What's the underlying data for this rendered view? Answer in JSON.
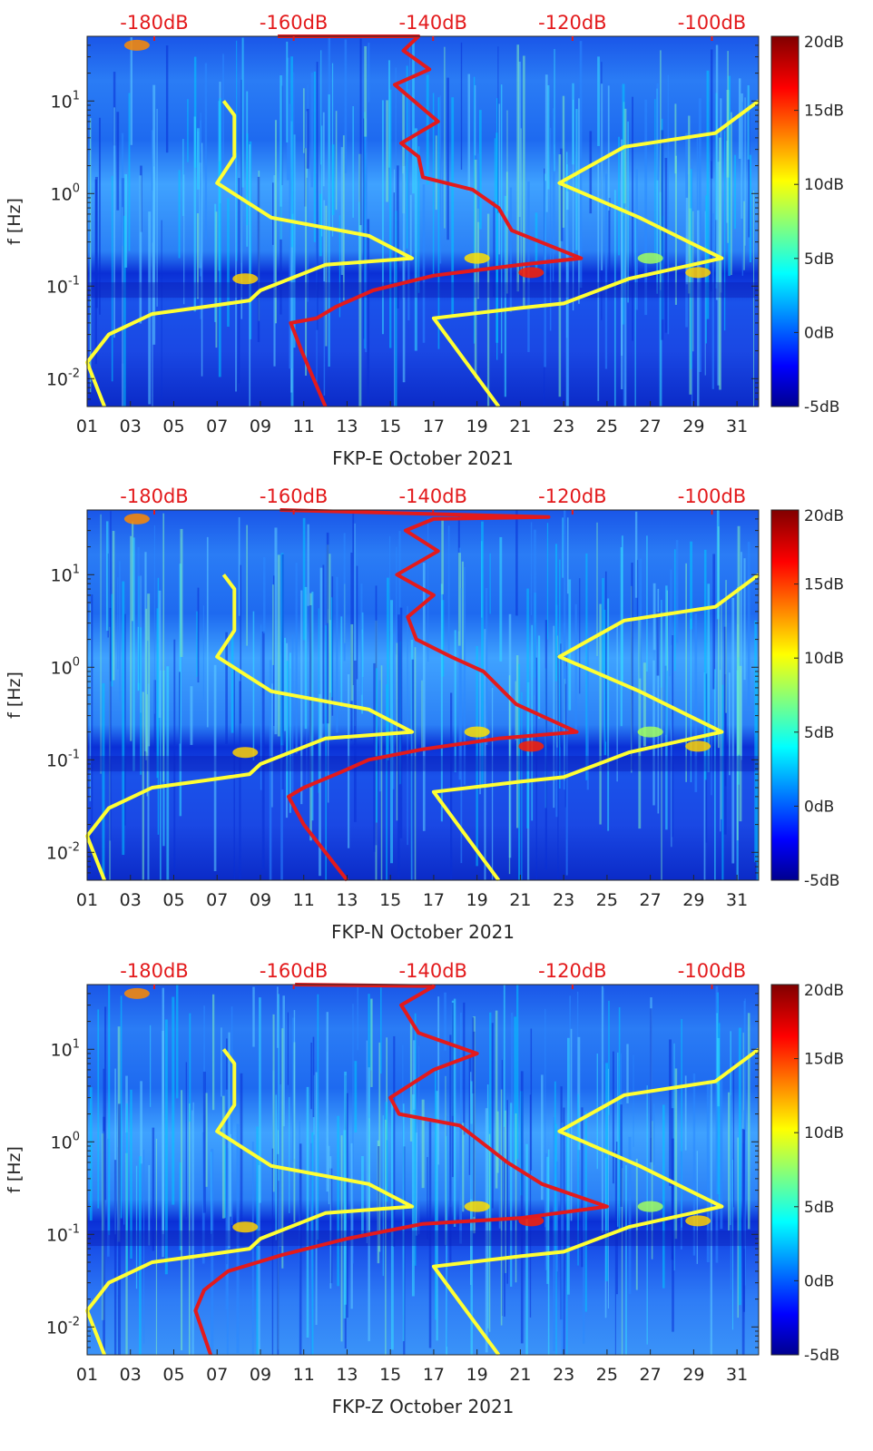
{
  "chart_data": [
    {
      "type": "heatmap",
      "title": "FKP-E October 2021",
      "xlabel": "FKP-E October 2021",
      "ylabel": "f [Hz]",
      "x_ticks": [
        "01",
        "03",
        "05",
        "07",
        "09",
        "11",
        "13",
        "15",
        "17",
        "19",
        "21",
        "23",
        "25",
        "27",
        "29",
        "31"
      ],
      "xlim_day": [
        1,
        32
      ],
      "y_ticks": [
        "10^-2",
        "10^-1",
        "10^0",
        "10^1"
      ],
      "ylim_hz": [
        0.005,
        50
      ],
      "top_axis_ticks": [
        "-180dB",
        "-160dB",
        "-140dB",
        "-120dB",
        "-100dB"
      ],
      "top_axis_range_db": [
        -190,
        -93.8
      ],
      "colorbar_ticks": [
        "20dB",
        "15dB",
        "10dB",
        "5dB",
        "0dB",
        "-5dB"
      ],
      "colorbar_range_db": [
        -5,
        20
      ],
      "series": [
        {
          "name": "yellow noise-model curves",
          "color": "#ffff33",
          "low_model_points_day_vs_hz": [
            [
              7.3,
              10
            ],
            [
              7.8,
              7
            ],
            [
              7.8,
              2.5
            ],
            [
              7.0,
              1.3
            ],
            [
              9.5,
              0.55
            ],
            [
              14.0,
              0.35
            ],
            [
              16.0,
              0.2
            ],
            [
              12.0,
              0.17
            ],
            [
              9.0,
              0.09
            ],
            [
              8.5,
              0.07
            ],
            [
              6.5,
              0.06
            ],
            [
              4.0,
              0.05
            ],
            [
              2.0,
              0.03
            ],
            [
              1.0,
              0.015
            ],
            [
              1.8,
              0.005
            ]
          ],
          "high_model_points_day_vs_hz": [
            [
              32.0,
              10
            ],
            [
              30.0,
              4.5
            ],
            [
              25.8,
              3.2
            ],
            [
              22.8,
              1.3
            ],
            [
              26.5,
              0.55
            ],
            [
              30.3,
              0.2
            ],
            [
              26.0,
              0.12
            ],
            [
              23.0,
              0.065
            ],
            [
              21.0,
              0.058
            ],
            [
              17.0,
              0.045
            ],
            [
              20.0,
              0.005
            ]
          ]
        },
        {
          "name": "red median PSD curve",
          "color": "#e31a1c",
          "points_day_vs_hz": [
            [
              9.8,
              50
            ],
            [
              16.3,
              50
            ],
            [
              15.6,
              35
            ],
            [
              16.8,
              22
            ],
            [
              15.2,
              15
            ],
            [
              17.2,
              6
            ],
            [
              15.5,
              3.5
            ],
            [
              16.3,
              2.5
            ],
            [
              16.5,
              1.5
            ],
            [
              18.8,
              1.1
            ],
            [
              20.0,
              0.7
            ],
            [
              20.6,
              0.4
            ],
            [
              23.8,
              0.2
            ],
            [
              21.0,
              0.17
            ],
            [
              17.0,
              0.13
            ],
            [
              14.2,
              0.09
            ],
            [
              12.5,
              0.06
            ],
            [
              11.6,
              0.045
            ],
            [
              10.4,
              0.04
            ],
            [
              10.9,
              0.02
            ],
            [
              12.0,
              0.005
            ]
          ]
        }
      ]
    },
    {
      "type": "heatmap",
      "title": "FKP-N October 2021",
      "xlabel": "FKP-N October 2021",
      "ylabel": "f [Hz]",
      "x_ticks": [
        "01",
        "03",
        "05",
        "07",
        "09",
        "11",
        "13",
        "15",
        "17",
        "19",
        "21",
        "23",
        "25",
        "27",
        "29",
        "31"
      ],
      "xlim_day": [
        1,
        32
      ],
      "y_ticks": [
        "10^-2",
        "10^-1",
        "10^0",
        "10^1"
      ],
      "ylim_hz": [
        0.005,
        50
      ],
      "top_axis_ticks": [
        "-180dB",
        "-160dB",
        "-140dB",
        "-120dB",
        "-100dB"
      ],
      "top_axis_range_db": [
        -190,
        -93.8
      ],
      "colorbar_ticks": [
        "20dB",
        "15dB",
        "10dB",
        "5dB",
        "0dB",
        "-5dB"
      ],
      "colorbar_range_db": [
        -5,
        20
      ],
      "series": [
        {
          "name": "yellow noise-model curves",
          "color": "#ffff33",
          "low_model_points_day_vs_hz": [
            [
              7.3,
              10
            ],
            [
              7.8,
              7
            ],
            [
              7.8,
              2.5
            ],
            [
              7.0,
              1.3
            ],
            [
              9.5,
              0.55
            ],
            [
              14.0,
              0.35
            ],
            [
              16.0,
              0.2
            ],
            [
              12.0,
              0.17
            ],
            [
              9.0,
              0.09
            ],
            [
              8.5,
              0.07
            ],
            [
              6.5,
              0.06
            ],
            [
              4.0,
              0.05
            ],
            [
              2.0,
              0.03
            ],
            [
              1.0,
              0.015
            ],
            [
              1.8,
              0.005
            ]
          ],
          "high_model_points_day_vs_hz": [
            [
              32.0,
              10
            ],
            [
              30.0,
              4.5
            ],
            [
              25.8,
              3.2
            ],
            [
              22.8,
              1.3
            ],
            [
              26.5,
              0.55
            ],
            [
              30.3,
              0.2
            ],
            [
              26.0,
              0.12
            ],
            [
              23.0,
              0.065
            ],
            [
              21.0,
              0.058
            ],
            [
              17.0,
              0.045
            ],
            [
              20.0,
              0.005
            ]
          ]
        },
        {
          "name": "red median PSD curve",
          "color": "#e31a1c",
          "points_day_vs_hz": [
            [
              9.9,
              50
            ],
            [
              22.3,
              42
            ],
            [
              17.0,
              40
            ],
            [
              15.7,
              30
            ],
            [
              17.2,
              18
            ],
            [
              15.3,
              10
            ],
            [
              17.0,
              6
            ],
            [
              15.8,
              3.5
            ],
            [
              16.2,
              2.0
            ],
            [
              17.8,
              1.3
            ],
            [
              19.3,
              0.9
            ],
            [
              20.8,
              0.4
            ],
            [
              23.6,
              0.2
            ],
            [
              20.0,
              0.17
            ],
            [
              16.5,
              0.13
            ],
            [
              14.0,
              0.1
            ],
            [
              12.5,
              0.07
            ],
            [
              11.0,
              0.05
            ],
            [
              10.3,
              0.04
            ],
            [
              11.0,
              0.02
            ],
            [
              13.0,
              0.005
            ]
          ]
        }
      ]
    },
    {
      "type": "heatmap",
      "title": "FKP-Z October 2021",
      "xlabel": "FKP-Z October 2021",
      "ylabel": "f [Hz]",
      "x_ticks": [
        "01",
        "03",
        "05",
        "07",
        "09",
        "11",
        "13",
        "15",
        "17",
        "19",
        "21",
        "23",
        "25",
        "27",
        "29",
        "31"
      ],
      "xlim_day": [
        1,
        32
      ],
      "y_ticks": [
        "10^-2",
        "10^-1",
        "10^0",
        "10^1"
      ],
      "ylim_hz": [
        0.005,
        50
      ],
      "top_axis_ticks": [
        "-180dB",
        "-160dB",
        "-140dB",
        "-120dB",
        "-100dB"
      ],
      "top_axis_range_db": [
        -190,
        -93.8
      ],
      "colorbar_ticks": [
        "20dB",
        "15dB",
        "10dB",
        "5dB",
        "0dB",
        "-5dB"
      ],
      "colorbar_range_db": [
        -5,
        20
      ],
      "series": [
        {
          "name": "yellow noise-model curves",
          "color": "#ffff33",
          "low_model_points_day_vs_hz": [
            [
              7.3,
              10
            ],
            [
              7.8,
              7
            ],
            [
              7.8,
              2.5
            ],
            [
              7.0,
              1.3
            ],
            [
              9.5,
              0.55
            ],
            [
              14.0,
              0.35
            ],
            [
              16.0,
              0.2
            ],
            [
              12.0,
              0.17
            ],
            [
              9.0,
              0.09
            ],
            [
              8.5,
              0.07
            ],
            [
              6.5,
              0.06
            ],
            [
              4.0,
              0.05
            ],
            [
              2.0,
              0.03
            ],
            [
              1.0,
              0.015
            ],
            [
              1.8,
              0.005
            ]
          ],
          "high_model_points_day_vs_hz": [
            [
              32.0,
              10
            ],
            [
              30.0,
              4.5
            ],
            [
              25.8,
              3.2
            ],
            [
              22.8,
              1.3
            ],
            [
              26.5,
              0.55
            ],
            [
              30.3,
              0.2
            ],
            [
              26.0,
              0.12
            ],
            [
              23.0,
              0.065
            ],
            [
              21.0,
              0.058
            ],
            [
              17.0,
              0.045
            ],
            [
              20.0,
              0.005
            ]
          ]
        },
        {
          "name": "red median PSD curve",
          "color": "#e31a1c",
          "points_day_vs_hz": [
            [
              10.6,
              50
            ],
            [
              17.0,
              48
            ],
            [
              15.5,
              30
            ],
            [
              16.3,
              15
            ],
            [
              19.0,
              9
            ],
            [
              17.0,
              6
            ],
            [
              15.0,
              3
            ],
            [
              15.4,
              2.0
            ],
            [
              18.2,
              1.5
            ],
            [
              20.4,
              0.6
            ],
            [
              22.0,
              0.35
            ],
            [
              25.0,
              0.2
            ],
            [
              21.0,
              0.15
            ],
            [
              16.5,
              0.13
            ],
            [
              13.0,
              0.09
            ],
            [
              10.0,
              0.06
            ],
            [
              7.5,
              0.04
            ],
            [
              6.4,
              0.025
            ],
            [
              6.0,
              0.015
            ],
            [
              6.7,
              0.005
            ]
          ]
        }
      ]
    }
  ]
}
